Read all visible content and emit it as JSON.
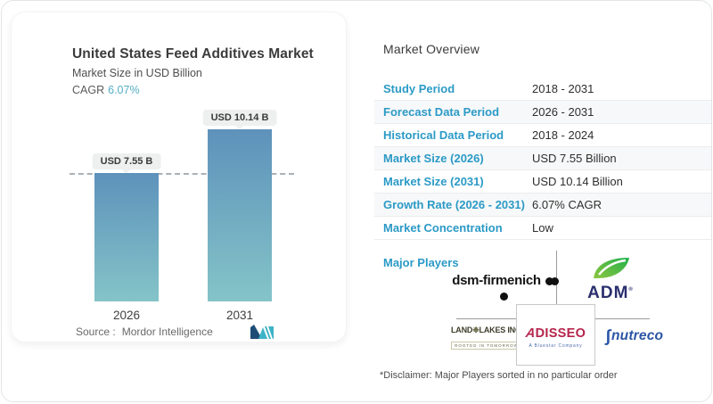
{
  "page": {
    "background": "#ffffff",
    "accent_blue": "#2b9ac6",
    "cagr_teal": "#54aec4"
  },
  "chart": {
    "title": "United States Feed Additives Market",
    "subtitle": "Market Size in USD Billion",
    "cagr_label": "CAGR",
    "cagr_value": "6.07%",
    "source_label": "Source :",
    "source_name": "Mordor Intelligence",
    "bar_gradient_top": "#5e92bb",
    "bar_gradient_bottom": "#84c4c8"
  },
  "chart_data": {
    "type": "bar",
    "title": "United States Feed Additives Market",
    "ylabel": "Market Size in USD Billion",
    "categories": [
      "2026",
      "2031"
    ],
    "values": [
      7.55,
      10.14
    ],
    "value_labels": [
      "USD 7.55 B",
      "USD 10.14 B"
    ],
    "ylim": [
      0,
      10.14
    ],
    "reference_line": 7.55,
    "grid": false,
    "legend": false
  },
  "overview": {
    "title": "Market Overview",
    "rows": [
      {
        "label": "Study Period",
        "value": "2018 - 2031"
      },
      {
        "label": "Forecast Data Period",
        "value": "2026 - 2031"
      },
      {
        "label": "Historical Data Period",
        "value": "2018 - 2024"
      },
      {
        "label": "Market Size (2026)",
        "value": "USD 7.55 Billion"
      },
      {
        "label": "Market Size (2031)",
        "value": "USD 10.14 Billion"
      },
      {
        "label": "Growth Rate (2026 - 2031)",
        "value": "6.07% CAGR"
      },
      {
        "label": "Market Concentration",
        "value": "Low"
      }
    ],
    "major_players_label": "Major Players",
    "major_players": [
      "dsm-firmenich",
      "ADM",
      "Land O'Lakes Inc.",
      "Adisseo",
      "Nutreco"
    ],
    "disclaimer": "*Disclaimer: Major Players sorted in no particular order"
  },
  "logos": {
    "dsm_firmenich": "dsm-firmenich",
    "adm": "ADM",
    "adm_mark": "®",
    "land_o_lakes_left": "LAND",
    "land_o_lakes_right": "LAKES INC.",
    "land_o_lakes_tagline": "ROOTED IN TOMORROW",
    "adisseo_a": "A",
    "adisseo_rest": "DISSEO",
    "adisseo_tagline": "A Bluestar Company",
    "nutreco_symbol": "∫",
    "nutreco_name": "nutreco"
  }
}
